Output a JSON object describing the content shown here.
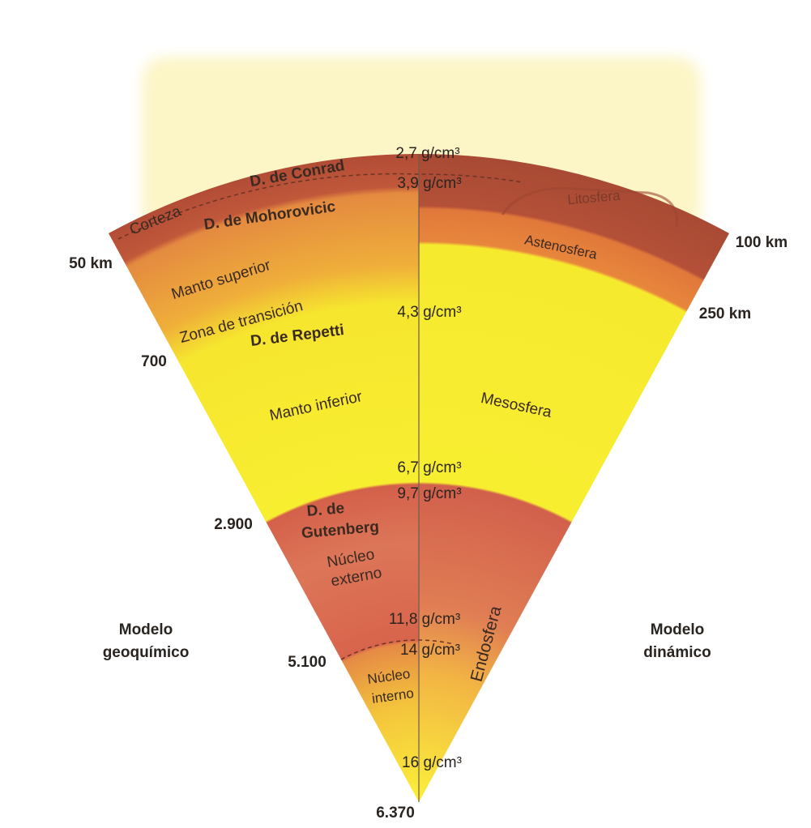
{
  "models": {
    "left": [
      "Modelo",
      "geoquímico"
    ],
    "right": [
      "Modelo",
      "dinámico"
    ]
  },
  "densities": [
    "2,7 g/cm³",
    "3,9 g/cm³",
    "4,3 g/cm³",
    "6,7 g/cm³",
    "9,7 g/cm³",
    "11,8 g/cm³",
    "14 g/cm³",
    "16 g/cm³"
  ],
  "depths_left": [
    "50 km",
    "700",
    "2.900",
    "5.100",
    "6.370"
  ],
  "depths_right": [
    "100 km",
    "250 km"
  ],
  "geochemical_layers": [
    "Corteza",
    "D. de Conrad",
    "D. de Mohorovicic",
    "Manto superior",
    "Zona de transición",
    "D. de Repetti",
    "Manto inferior",
    [
      "D. de",
      "Gutenberg"
    ],
    [
      "Núcleo",
      "externo"
    ],
    [
      "Núcleo",
      "interno"
    ]
  ],
  "dynamic_layers": [
    "Litosfera",
    "Astenosfera",
    "Mesosfera",
    "Endosfera"
  ]
}
